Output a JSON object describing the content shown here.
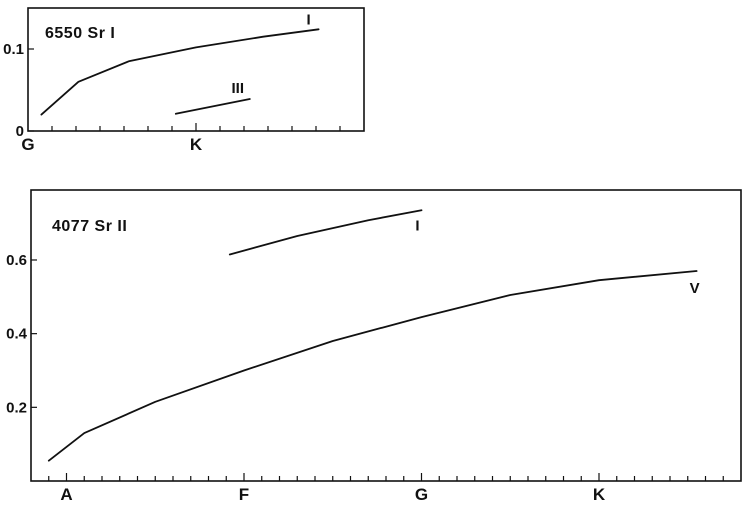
{
  "chart_data": [
    {
      "type": "line",
      "title": "6550 Sr I",
      "x_categories": [
        "G",
        "K"
      ],
      "xlim": [
        0,
        2
      ],
      "ylim": [
        0,
        0.15
      ],
      "yticks": [
        0,
        0.1
      ],
      "ytick_labels": [
        "0",
        "0.1"
      ],
      "grid": false,
      "series": [
        {
          "name": "I",
          "x": [
            0.08,
            0.3,
            0.6,
            1.0,
            1.4,
            1.73
          ],
          "y": [
            0.02,
            0.06,
            0.085,
            0.102,
            0.115,
            0.124
          ]
        },
        {
          "name": "III",
          "x": [
            0.88,
            1.32
          ],
          "y": [
            0.021,
            0.039
          ]
        }
      ]
    },
    {
      "type": "line",
      "title": "4077 Sr II",
      "x_categories": [
        "A",
        "F",
        "G",
        "K"
      ],
      "xlim": [
        -0.2,
        3.8
      ],
      "ylim": [
        0,
        0.79
      ],
      "yticks": [
        0.2,
        0.4,
        0.6
      ],
      "ytick_labels": [
        "0.2",
        "0.4",
        "0.6"
      ],
      "grid": false,
      "series": [
        {
          "name": "I",
          "x": [
            0.92,
            1.3,
            1.7,
            2.0
          ],
          "y": [
            0.615,
            0.665,
            0.708,
            0.735
          ]
        },
        {
          "name": "V",
          "x": [
            -0.1,
            0.1,
            0.5,
            1.0,
            1.5,
            2.0,
            2.5,
            3.0,
            3.55
          ],
          "y": [
            0.055,
            0.13,
            0.215,
            0.3,
            0.38,
            0.445,
            0.505,
            0.545,
            0.57
          ]
        }
      ]
    }
  ]
}
